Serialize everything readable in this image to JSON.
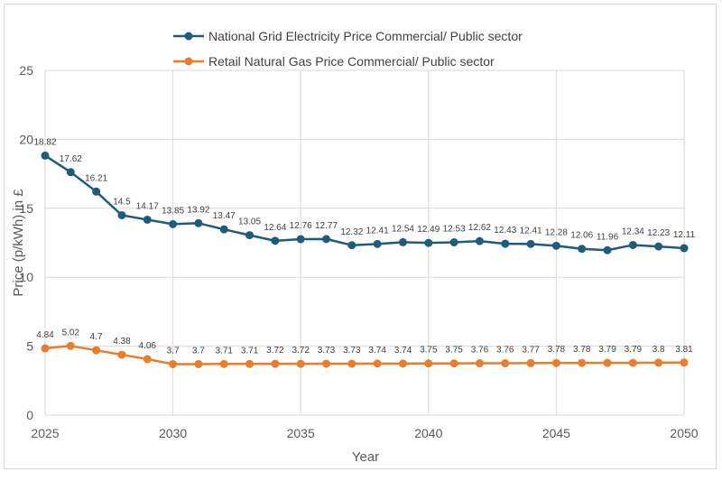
{
  "chart_data": {
    "type": "line",
    "title": "",
    "xlabel": "Year",
    "ylabel": "Price (p/kWh) in £",
    "xlim": [
      2025,
      2050
    ],
    "ylim": [
      0,
      25
    ],
    "x_ticks": [
      2025,
      2030,
      2035,
      2040,
      2045,
      2050
    ],
    "y_ticks": [
      0,
      5,
      10,
      15,
      20,
      25
    ],
    "grid": true,
    "legend_position": "top",
    "x": [
      2025,
      2026,
      2027,
      2028,
      2029,
      2030,
      2031,
      2032,
      2033,
      2034,
      2035,
      2036,
      2037,
      2038,
      2039,
      2040,
      2041,
      2042,
      2043,
      2044,
      2045,
      2046,
      2047,
      2048,
      2049,
      2050
    ],
    "series": [
      {
        "name": "National Grid Electricity Price Commercial/ Public sector",
        "color": "#1f5c7a",
        "values": [
          18.82,
          17.62,
          16.21,
          14.5,
          14.17,
          13.85,
          13.92,
          13.47,
          13.05,
          12.64,
          12.76,
          12.77,
          12.32,
          12.41,
          12.54,
          12.49,
          12.53,
          12.62,
          12.43,
          12.41,
          12.28,
          12.06,
          11.96,
          12.34,
          12.23,
          12.11
        ]
      },
      {
        "name": "Retail Natural Gas Price Commercial/ Public sector",
        "color": "#e87d2e",
        "values": [
          4.84,
          5.02,
          4.7,
          4.38,
          4.06,
          3.7,
          3.7,
          3.71,
          3.71,
          3.72,
          3.72,
          3.73,
          3.73,
          3.74,
          3.74,
          3.75,
          3.75,
          3.76,
          3.76,
          3.77,
          3.78,
          3.78,
          3.79,
          3.79,
          3.8,
          3.81
        ]
      }
    ]
  }
}
